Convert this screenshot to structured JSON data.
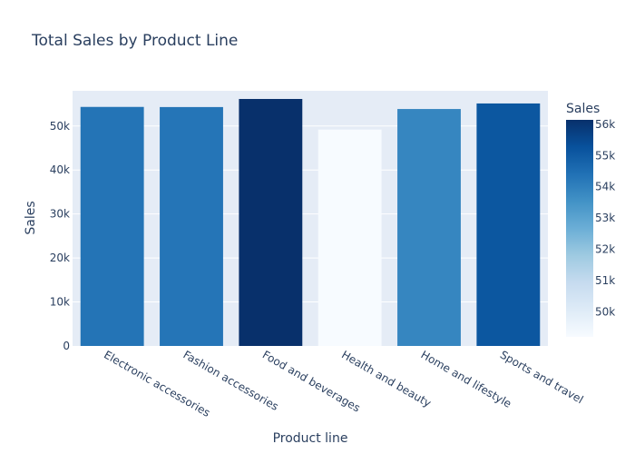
{
  "chart_data": {
    "type": "bar",
    "title": "Total Sales by Product Line",
    "xlabel": "Product line",
    "ylabel": "Sales",
    "categories": [
      "Electronic accessories",
      "Fashion accessories",
      "Food and beverages",
      "Health and beauty",
      "Home and lifestyle",
      "Sports and travel"
    ],
    "values": [
      54337,
      54305,
      56144,
      49193,
      53861,
      55122
    ],
    "ylim": [
      0,
      58000
    ],
    "yticks": [
      0,
      10000,
      20000,
      30000,
      40000,
      50000
    ],
    "ytick_labels": [
      "0",
      "10k",
      "20k",
      "30k",
      "40k",
      "50k"
    ],
    "grid": true,
    "colorbar": {
      "title": "Sales",
      "range": [
        49193,
        56144
      ],
      "ticks": [
        50000,
        51000,
        52000,
        53000,
        54000,
        55000,
        56000
      ],
      "tick_labels": [
        "50k",
        "51k",
        "52k",
        "53k",
        "54k",
        "55k",
        "56k"
      ],
      "colorscale": [
        "#f7fbff",
        "#deebf7",
        "#c6dbef",
        "#9ecae1",
        "#6baed6",
        "#4292c6",
        "#2171b5",
        "#08519c",
        "#08306b"
      ]
    },
    "colors": {
      "plot_bg": "#e5ecf6",
      "grid": "#ffffff",
      "text": "#2a3f5f"
    }
  }
}
